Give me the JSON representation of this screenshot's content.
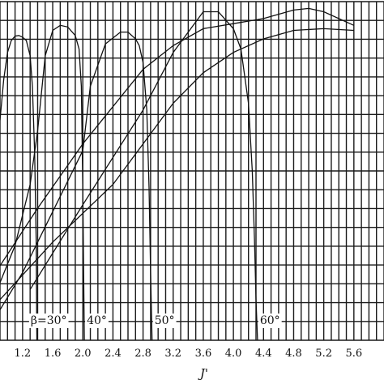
{
  "chart_data": {
    "type": "line",
    "title": "",
    "xlabel": "J'",
    "ylabel": "",
    "xlim": [
      0.9,
      6.0
    ],
    "ylim": [
      0,
      10
    ],
    "grid": true,
    "x_ticks": [
      "1.2",
      "1.6",
      "2.0",
      "2.4",
      "2.8",
      "3.2",
      "3.6",
      "4.0",
      "4.4",
      "4.8",
      "5.2",
      "5.6"
    ],
    "annotations": [
      "β=30°",
      "40°",
      "50°",
      "60°"
    ],
    "series": [
      {
        "name": "β=30°",
        "x": [
          0.9,
          0.95,
          1.0,
          1.05,
          1.1,
          1.15,
          1.2,
          1.25,
          1.3,
          1.33,
          1.36,
          1.38,
          1.39
        ],
        "y": [
          6.5,
          7.7,
          8.5,
          8.85,
          8.98,
          9.0,
          8.95,
          8.85,
          8.4,
          7.5,
          5.5,
          3.0,
          0.0
        ]
      },
      {
        "name": "40°",
        "x": [
          0.9,
          1.1,
          1.3,
          1.4,
          1.5,
          1.6,
          1.7,
          1.8,
          1.9,
          1.95,
          1.98,
          2.0,
          2.02
        ],
        "y": [
          1.7,
          2.8,
          4.6,
          6.2,
          8.4,
          9.15,
          9.3,
          9.25,
          9.0,
          8.6,
          7.5,
          4.5,
          0.0
        ]
      },
      {
        "name": "50°",
        "x": [
          0.9,
          1.2,
          1.6,
          2.0,
          2.1,
          2.3,
          2.5,
          2.6,
          2.7,
          2.75,
          2.8,
          2.85,
          2.88,
          2.9,
          2.92
        ],
        "y": [
          0.9,
          2.0,
          3.8,
          5.6,
          7.5,
          8.75,
          9.1,
          9.1,
          8.9,
          8.7,
          8.2,
          6.8,
          4.5,
          2.0,
          0.0
        ]
      },
      {
        "name": "60°",
        "x": [
          1.3,
          2.0,
          2.8,
          3.2,
          3.6,
          3.8,
          4.0,
          4.1,
          4.2,
          4.25,
          4.28,
          4.3,
          4.32
        ],
        "y": [
          1.5,
          4.0,
          6.8,
          8.5,
          9.7,
          9.7,
          9.2,
          8.6,
          7.0,
          5.0,
          3.0,
          1.2,
          0.0
        ]
      },
      {
        "name": "",
        "x": [
          0.9,
          1.4,
          2.0,
          2.8,
          3.2,
          3.6,
          4.0,
          4.4,
          4.8,
          5.0,
          5.2,
          5.6
        ],
        "y": [
          2.2,
          3.9,
          5.8,
          8.0,
          8.7,
          9.2,
          9.35,
          9.5,
          9.75,
          9.8,
          9.7,
          9.3
        ]
      },
      {
        "name": "",
        "x": [
          0.9,
          1.6,
          2.4,
          2.8,
          3.2,
          3.6,
          4.0,
          4.4,
          4.8,
          5.2,
          5.6
        ],
        "y": [
          1.2,
          2.9,
          4.6,
          5.8,
          7.0,
          7.9,
          8.5,
          8.9,
          9.15,
          9.2,
          9.15
        ]
      }
    ]
  }
}
